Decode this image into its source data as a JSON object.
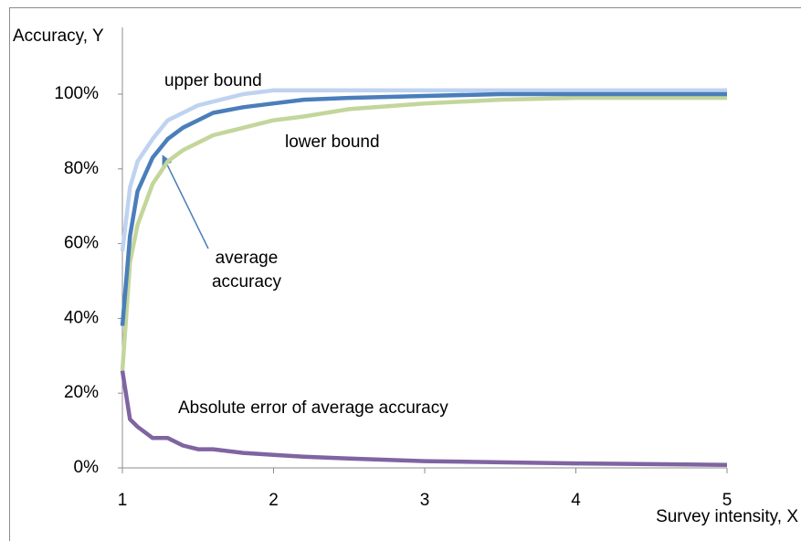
{
  "chart_data": {
    "type": "line",
    "y_label": "Accuracy, Y",
    "x_label": "Survey intensity, X",
    "x": [
      1,
      1.05,
      1.1,
      1.2,
      1.3,
      1.4,
      1.5,
      1.6,
      1.8,
      2,
      2.2,
      2.5,
      3,
      3.5,
      4,
      4.5,
      5
    ],
    "series": [
      {
        "name": "upper bound",
        "color": "#bfd3f0",
        "values": [
          58,
          75,
          82,
          88,
          93,
          95,
          97,
          98,
          100,
          101,
          101,
          101,
          101,
          101,
          101,
          101,
          101
        ]
      },
      {
        "name": "lower bound",
        "color": "#c3d69b",
        "values": [
          26,
          55,
          65,
          76,
          82,
          85,
          87,
          89,
          91,
          93,
          94,
          96,
          97.5,
          98.5,
          99,
          99,
          99
        ]
      },
      {
        "name": "average accuracy",
        "color": "#4a7ebb",
        "values": [
          38,
          62,
          74,
          83,
          88,
          91,
          93,
          95,
          96.5,
          97.5,
          98.5,
          99,
          99.5,
          100,
          100,
          100,
          100
        ]
      },
      {
        "name": "Absolute error of average accuracy",
        "color": "#8064a2",
        "values": [
          26,
          13,
          11,
          8,
          8,
          6,
          5,
          5,
          4,
          3.5,
          3,
          2.5,
          1.8,
          1.5,
          1.2,
          1,
          0.8
        ]
      }
    ],
    "xlim": [
      1,
      5
    ],
    "xticks": [
      1,
      2,
      3,
      4,
      5
    ],
    "ylim": [
      0,
      100
    ],
    "yticks": [
      {
        "value": 0,
        "label": "0%"
      },
      {
        "value": 20,
        "label": "20%"
      },
      {
        "value": 40,
        "label": "40%"
      },
      {
        "value": 60,
        "label": "60%"
      },
      {
        "value": 80,
        "label": "80%"
      },
      {
        "value": 100,
        "label": "100%"
      }
    ],
    "grid": false
  }
}
